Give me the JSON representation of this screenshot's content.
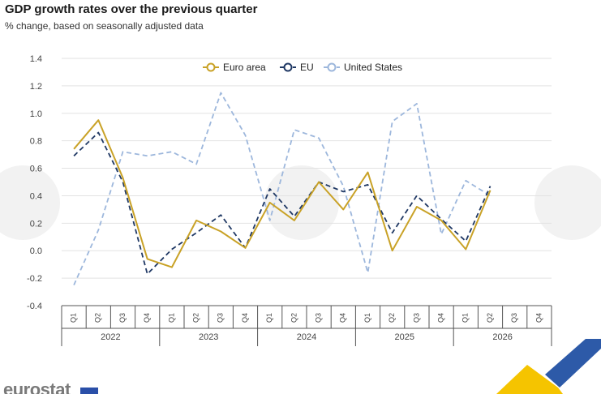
{
  "header": {
    "title": "GDP growth rates over the previous quarter",
    "subtitle": "% change, based on seasonally adjusted data"
  },
  "branding": {
    "logo_text": "eurostat"
  },
  "colors": {
    "euro_area": "#c9a227",
    "eu": "#1f3864",
    "us": "#9db7dc",
    "grid": "#e2e2e2",
    "axis_text": "#444444"
  },
  "chart_data": {
    "type": "line",
    "title": "GDP growth rates over the previous quarter",
    "subtitle": "% change, based on seasonally adjusted data",
    "xlabel": "",
    "ylabel": "",
    "ylim": [
      -0.4,
      1.4
    ],
    "yticks": [
      "-0.4",
      "-0.2",
      "0.0",
      "0.2",
      "0.4",
      "0.6",
      "0.8",
      "1.0",
      "1.2",
      "1.4"
    ],
    "grid": true,
    "legend_position": "top",
    "categories": [
      "Q1",
      "Q2",
      "Q3",
      "Q4",
      "Q1",
      "Q2",
      "Q3",
      "Q4",
      "Q1",
      "Q2",
      "Q3",
      "Q4",
      "Q1",
      "Q2",
      "Q3",
      "Q4",
      "Q1",
      "Q2",
      "Q3",
      "Q4"
    ],
    "groups": [
      {
        "label": "2022",
        "count": 4
      },
      {
        "label": "2023",
        "count": 4
      },
      {
        "label": "2024",
        "count": 4
      },
      {
        "label": "2025",
        "count": 4
      },
      {
        "label": "2026",
        "count": 4
      }
    ],
    "series": [
      {
        "name": "Euro area",
        "style": "solid",
        "values": [
          0.74,
          0.95,
          0.53,
          -0.06,
          -0.12,
          0.22,
          0.14,
          0.02,
          0.35,
          0.22,
          0.5,
          0.3,
          0.57,
          0.0,
          0.32,
          0.22,
          0.01,
          0.44,
          null,
          null
        ]
      },
      {
        "name": "EU",
        "style": "dashed",
        "values": [
          0.69,
          0.86,
          0.5,
          -0.17,
          0.01,
          0.13,
          0.26,
          0.02,
          0.45,
          0.25,
          0.5,
          0.43,
          0.48,
          0.13,
          0.4,
          0.23,
          0.07,
          0.47,
          null,
          null
        ]
      },
      {
        "name": "United States",
        "style": "dashed",
        "values": [
          -0.25,
          0.15,
          0.72,
          0.69,
          0.72,
          0.63,
          1.15,
          0.84,
          0.22,
          0.88,
          0.82,
          0.47,
          -0.16,
          0.94,
          1.07,
          0.12,
          0.51,
          0.4,
          null,
          null
        ]
      }
    ]
  }
}
